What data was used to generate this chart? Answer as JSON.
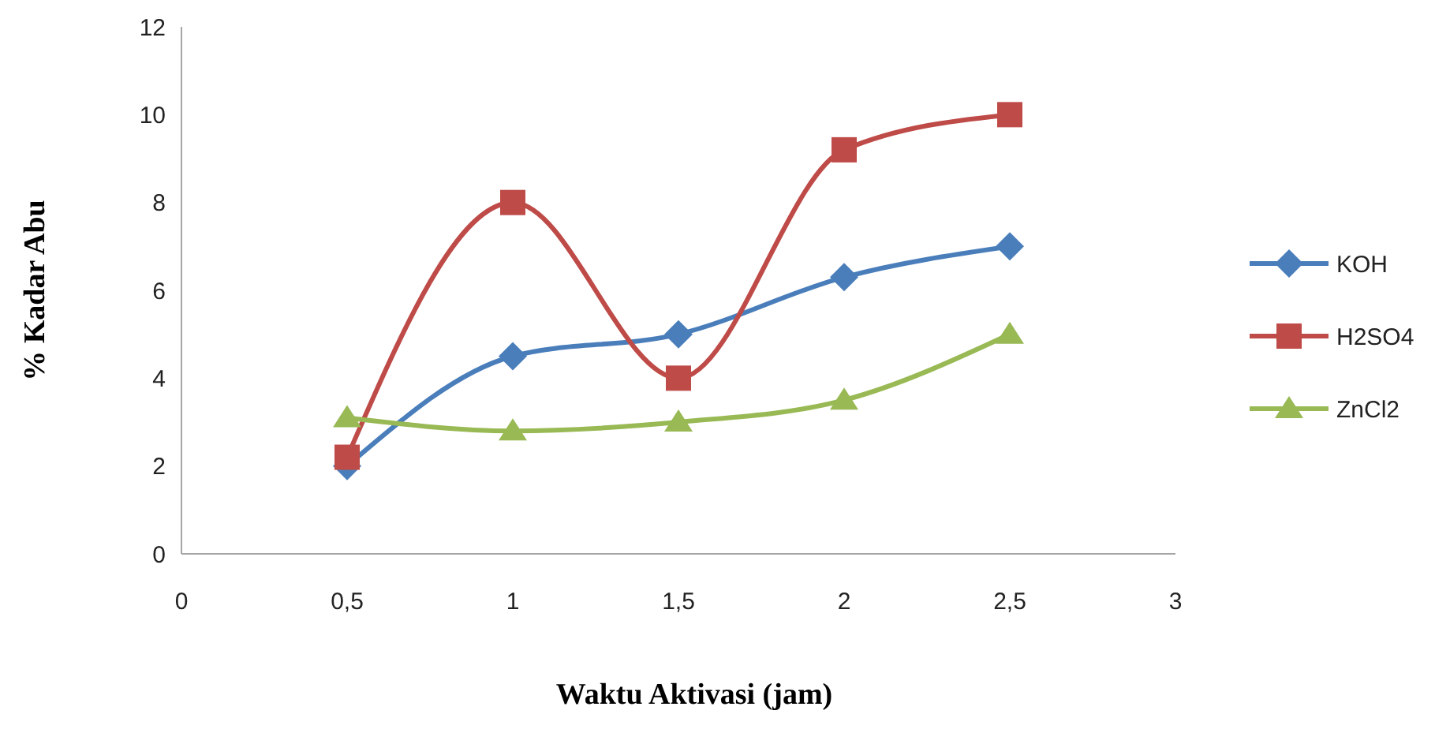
{
  "chart_data": {
    "type": "line",
    "xlabel": "Waktu Aktivasi (jam)",
    "ylabel": "% Kadar Abu",
    "x": [
      0.5,
      1,
      1.5,
      2,
      2.5
    ],
    "series": [
      {
        "name": "KOH",
        "color": "#4a7ebb",
        "marker": "diamond",
        "values": [
          2.0,
          4.5,
          5.0,
          6.3,
          7.0
        ]
      },
      {
        "name": "H2SO4",
        "color": "#be4b48",
        "marker": "square",
        "values": [
          2.2,
          8.0,
          4.0,
          9.2,
          10.0
        ]
      },
      {
        "name": "ZnCl2",
        "color": "#98b954",
        "marker": "triangle",
        "values": [
          3.1,
          2.8,
          3.0,
          3.5,
          5.0
        ]
      }
    ],
    "xlim": [
      0,
      3
    ],
    "xticks": [
      0,
      {
        "value": 0.5,
        "label": "0,5"
      },
      1,
      {
        "value": 1.5,
        "label": "1,5"
      },
      2,
      {
        "value": 2.5,
        "label": "2,5"
      },
      3
    ],
    "ylim": [
      0,
      12
    ],
    "yticks": [
      0,
      2,
      4,
      6,
      8,
      10,
      12
    ],
    "grid": false,
    "legend": "right",
    "line_style": "solid"
  }
}
